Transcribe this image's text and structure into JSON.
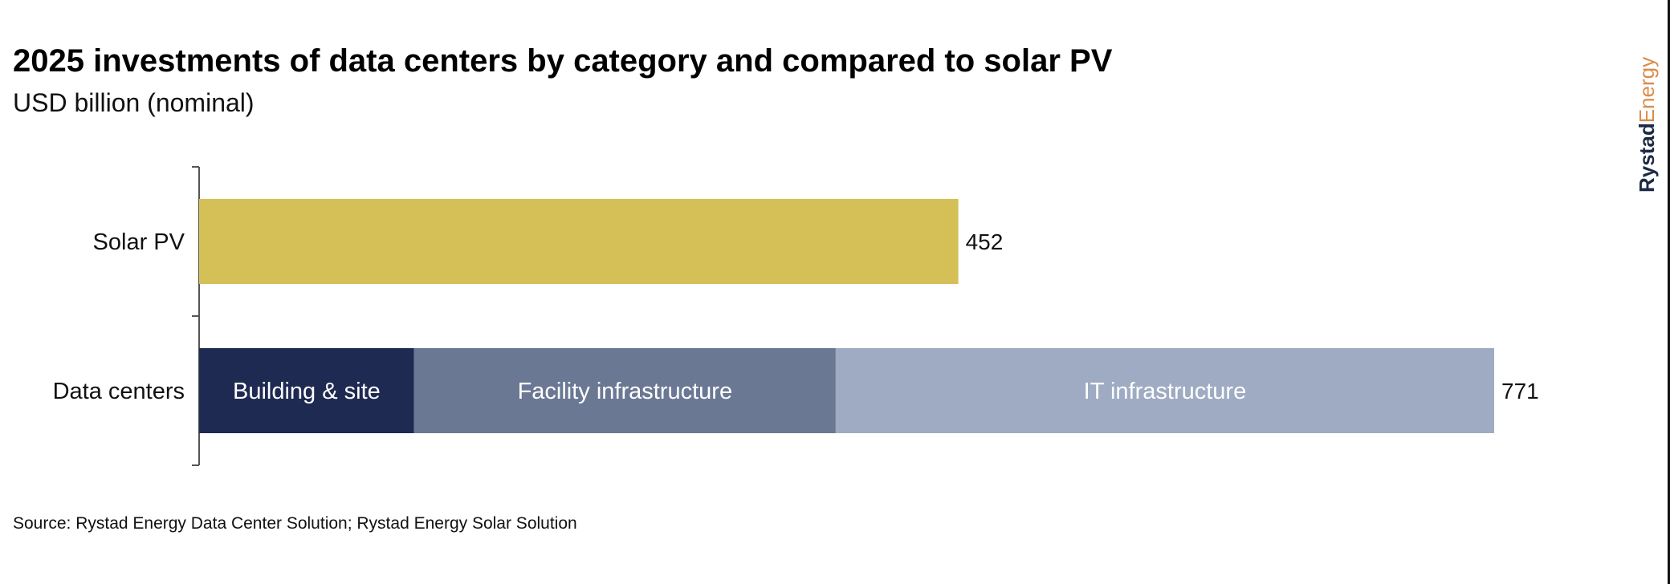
{
  "chart_data": {
    "type": "bar",
    "orientation": "horizontal",
    "stacked": true,
    "title": "2025 investments of data centers by category and compared to solar PV",
    "subtitle": "USD billion (nominal)",
    "categories": [
      "Solar PV",
      "Data centers"
    ],
    "bars": [
      {
        "category": "Solar PV",
        "total_label": "452",
        "segments": [
          {
            "name": "",
            "value": 452,
            "color": "#d4c057"
          }
        ]
      },
      {
        "category": "Data centers",
        "total_label": "771",
        "segments": [
          {
            "name": "Building & site",
            "value": 128,
            "color": "#1f2a52"
          },
          {
            "name": "Facility infrastructure",
            "value": 251,
            "color": "#6b7894"
          },
          {
            "name": "IT infrastructure",
            "value": 392,
            "color": "#9eabc2"
          }
        ]
      }
    ],
    "xlim": [
      0,
      771
    ],
    "grid": false,
    "legend": "none (segment labels inside bars)"
  },
  "source": "Source: Rystad Energy Data Center Solution; Rystad Energy Solar Solution",
  "logo": {
    "part1": "Rystad",
    "part2": "Energy",
    "colors": [
      "#1e2a44",
      "#d98c4a"
    ]
  }
}
